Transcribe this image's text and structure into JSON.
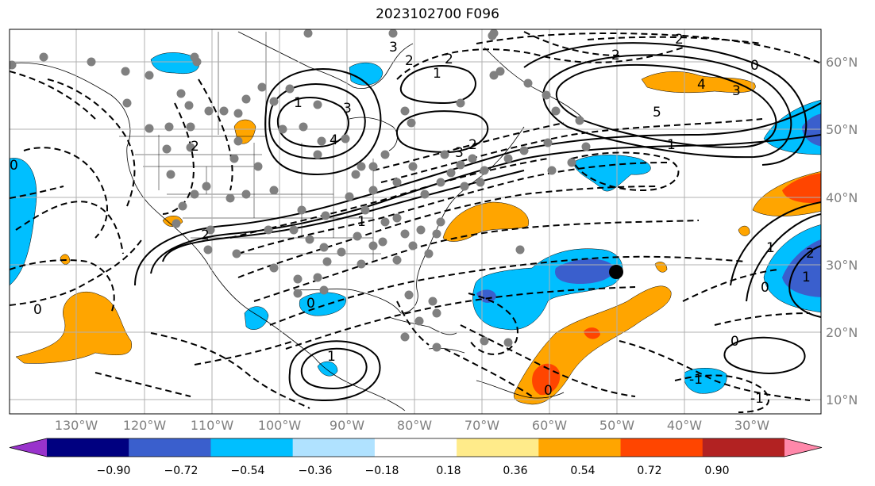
{
  "title": "2023102700 F096",
  "map": {
    "lat_labels": [
      "60°N",
      "50°N",
      "40°N",
      "30°N",
      "20°N",
      "10°N"
    ],
    "lon_labels": [
      "130°W",
      "120°W",
      "110°W",
      "100°W",
      "90°W",
      "80°W",
      "70°W",
      "60°W",
      "50°W",
      "40°W",
      "30°W"
    ],
    "contour_labels": [
      "2",
      "1",
      "2",
      "3",
      "3",
      "1",
      "3",
      "5",
      "1",
      "0",
      "4",
      "4",
      "3",
      "2",
      "0",
      "2",
      "0",
      "1",
      "-1",
      "0",
      "0",
      "2",
      "2",
      "2",
      "1",
      "1",
      "0",
      "0",
      "-1",
      "2",
      "1"
    ],
    "marker": {
      "lon": -51,
      "lat": 29,
      "color": "#000000"
    },
    "gridline_color": "#b0b0b0",
    "dot_color": "#808080"
  },
  "colorbar": {
    "tick_labels": [
      "−0.90",
      "−0.72",
      "−0.54",
      "−0.36",
      "−0.18",
      "0.18",
      "0.36",
      "0.54",
      "0.72",
      "0.90"
    ],
    "colors": [
      "#9933cc",
      "#000080",
      "#3a5fcd",
      "#00bfff",
      "#b0e2ff",
      "#ffffff",
      "#ffeb8a",
      "#ffa500",
      "#ff4500",
      "#b22222",
      "#ff88aa"
    ]
  }
}
